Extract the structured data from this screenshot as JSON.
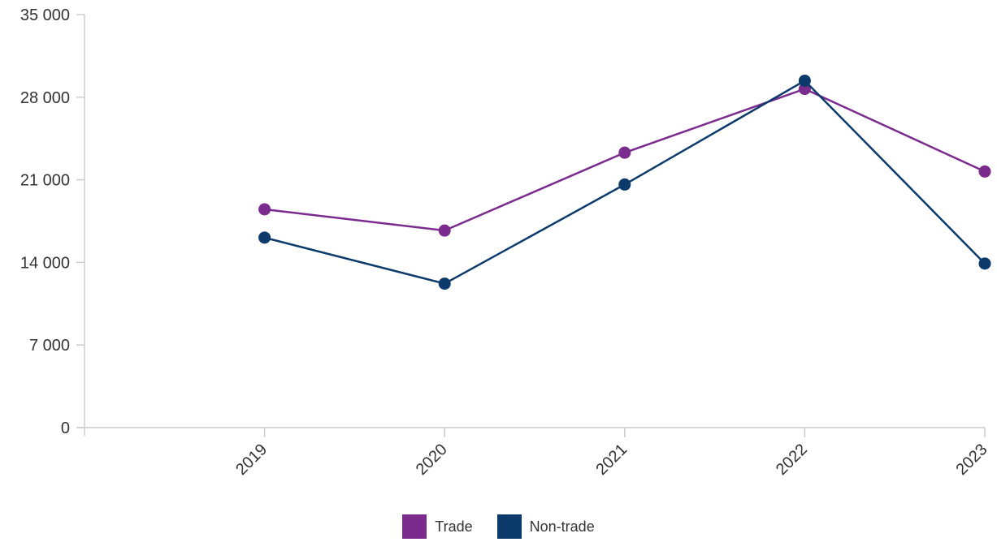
{
  "chart_data": {
    "type": "line",
    "categories": [
      "2019",
      "2020",
      "2021",
      "2022",
      "2023"
    ],
    "ylim": [
      0,
      35000
    ],
    "y_ticks": [
      "0",
      "7 000",
      "14 000",
      "21 000",
      "28 000",
      "35 000"
    ],
    "y_tick_values": [
      0,
      7000,
      14000,
      21000,
      28000,
      35000
    ],
    "series": [
      {
        "name": "Trade",
        "color": "#7b2a8d",
        "values": [
          18500,
          16700,
          23300,
          28700,
          21700
        ]
      },
      {
        "name": "Non-trade",
        "color": "#0b3a6b",
        "values": [
          16100,
          12200,
          20600,
          29400,
          13900
        ]
      }
    ],
    "legend_position": "bottom-center",
    "grid": false
  }
}
